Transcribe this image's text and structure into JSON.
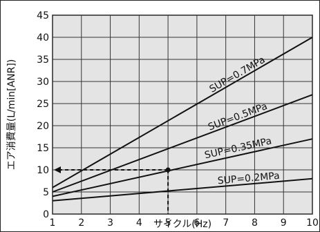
{
  "chart_data": {
    "type": "line",
    "title": "",
    "xlabel": "サイクル(Hz)",
    "ylabel": "エア消費量(L/min[ANR])",
    "xlim": [
      1,
      10
    ],
    "ylim": [
      0,
      45
    ],
    "x_ticks": [
      1,
      2,
      3,
      4,
      5,
      6,
      7,
      8,
      9,
      10
    ],
    "y_ticks": [
      0,
      5,
      10,
      15,
      20,
      25,
      30,
      35,
      40,
      45
    ],
    "grid": true,
    "legend": "none",
    "series": [
      {
        "name": "SUP=0.7MPa",
        "x": [
          1,
          10
        ],
        "y": [
          6,
          40
        ]
      },
      {
        "name": "SUP=0.5MPa",
        "x": [
          1,
          10
        ],
        "y": [
          5,
          27
        ]
      },
      {
        "name": "SUP=0.35MPa",
        "x": [
          1,
          10
        ],
        "y": [
          4,
          17
        ]
      },
      {
        "name": "SUP=0.2MPa",
        "x": [
          1,
          10
        ],
        "y": [
          3,
          8
        ]
      }
    ],
    "annotation": {
      "point": {
        "x": 5,
        "y": 10
      },
      "style": "dashed",
      "arrow_to": "y-axis"
    },
    "colors": {
      "line": "#111111",
      "grid": "#333333",
      "background": "#e4e4e4"
    }
  }
}
